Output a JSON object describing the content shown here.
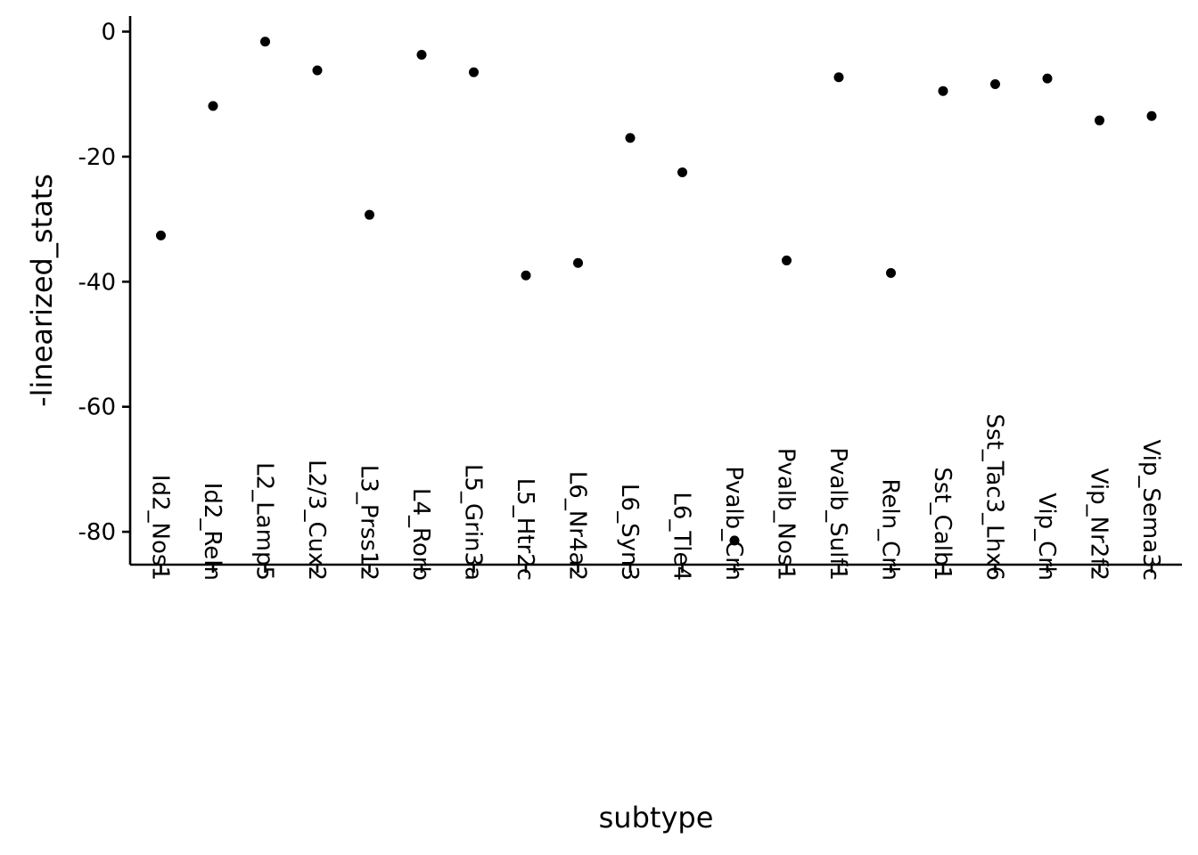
{
  "chart_data": {
    "type": "scatter",
    "title": "",
    "xlabel": "subtype",
    "ylabel": "-linearized_stats",
    "categories": [
      "Id2_Nos1",
      "Id2_Reln",
      "L2_Lamp5",
      "L2/3_Cux2",
      "L3_Prss12",
      "L4_Rorb",
      "L5_Grin3a",
      "L5_Htr2c",
      "L6_Nr4a2",
      "L6_Syn3",
      "L6_Tle4",
      "Pvalb_Crh",
      "Pvalb_Nos1",
      "Pvalb_Sulf1",
      "Reln_Crh",
      "Sst_Calb1",
      "Sst_Tac3_Lhx6",
      "Vip_Crh",
      "Vip_Nr2f2",
      "Vip_Sema3c"
    ],
    "values": [
      -32.6,
      -11.9,
      -1.6,
      -6.2,
      -29.3,
      -3.7,
      -6.5,
      -39.0,
      -37.0,
      -17.0,
      -22.5,
      -81.4,
      -36.6,
      -7.3,
      -38.6,
      -9.5,
      -8.4,
      -7.5,
      -14.2,
      -13.5
    ],
    "yticks": [
      0,
      -20,
      -40,
      -60,
      -80
    ],
    "ytick_labels": [
      "0",
      "-20",
      "-40",
      "-60",
      "-80"
    ],
    "ylim": [
      -85.2,
      2.4
    ],
    "grid": false,
    "marker_color": "#000000"
  }
}
